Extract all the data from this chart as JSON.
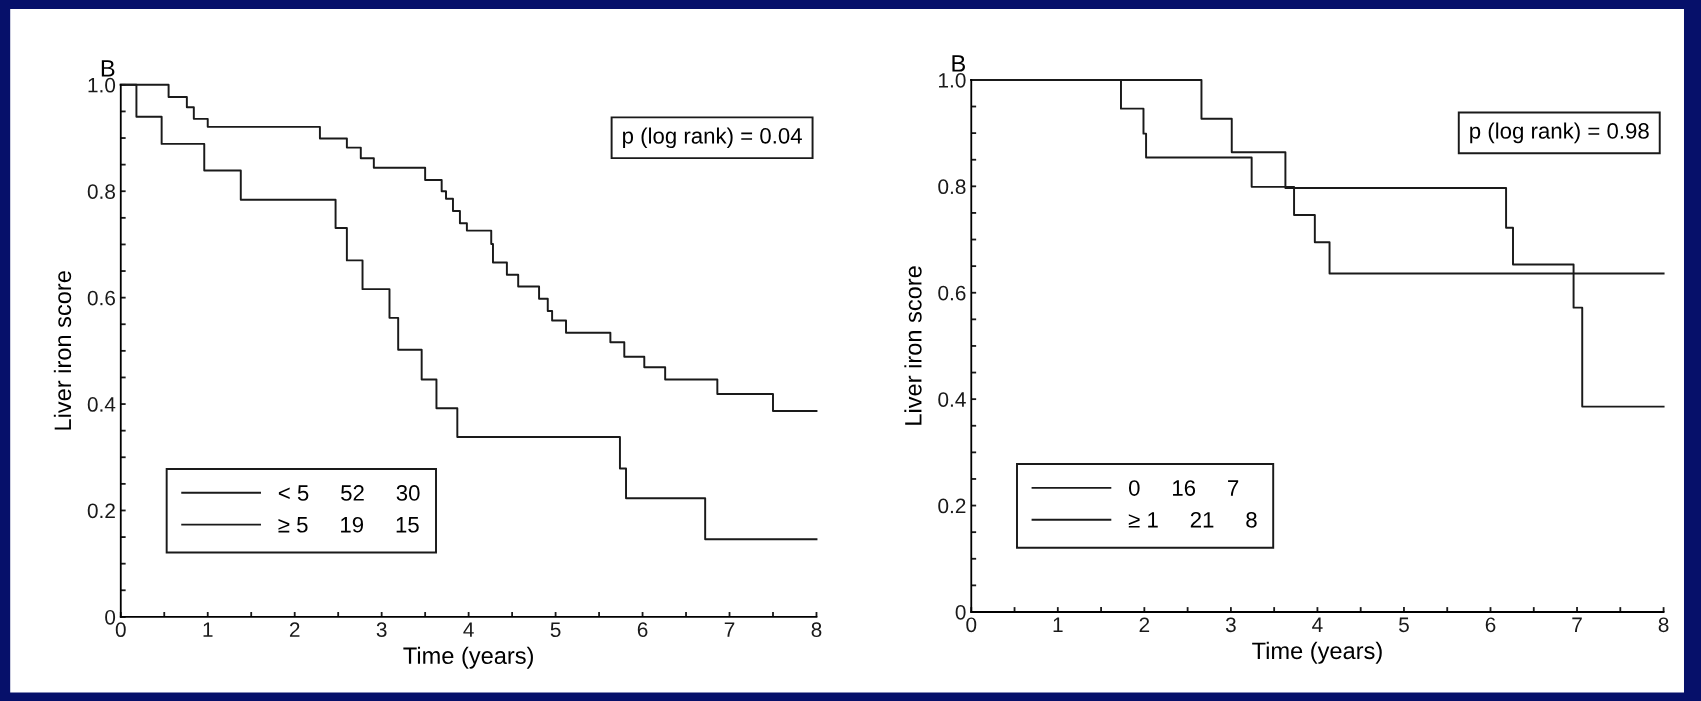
{
  "chart_data": [
    {
      "type": "step",
      "title": "B",
      "xlabel": "Time (years)",
      "ylabel": "Liver iron score",
      "annotations": [
        "p (log rank) = 0.04"
      ],
      "legend": "bottom left",
      "grid": false,
      "marker": "none",
      "line_style": "solid",
      "xlim": [
        0,
        8
      ],
      "ylim": [
        0,
        1.0
      ],
      "xticks": [
        0,
        {
          "value": 0.5,
          "label": null
        },
        1,
        {
          "value": 1.5,
          "label": null
        },
        2,
        {
          "value": 2.5,
          "label": null
        },
        3,
        {
          "value": 3.5,
          "label": null
        },
        4,
        {
          "value": 4.5,
          "label": null
        },
        5,
        {
          "value": 5.5,
          "label": null
        },
        6,
        {
          "value": 6.5,
          "label": null
        },
        7,
        {
          "value": 7.5,
          "label": null
        },
        8
      ],
      "yticks": [
        0,
        {
          "value": 0.05,
          "label": null
        },
        {
          "value": 0.1,
          "label": null
        },
        {
          "value": 0.15,
          "label": null
        },
        0.2,
        {
          "value": 0.25,
          "label": null
        },
        {
          "value": 0.3,
          "label": null
        },
        {
          "value": 0.35,
          "label": null
        },
        0.4,
        {
          "value": 0.45,
          "label": null
        },
        {
          "value": 0.5,
          "label": null
        },
        {
          "value": 0.55,
          "label": null
        },
        0.6,
        {
          "value": 0.65,
          "label": null
        },
        {
          "value": 0.7,
          "label": null
        },
        {
          "value": 0.75,
          "label": null
        },
        0.8,
        {
          "value": 0.85,
          "label": null
        },
        {
          "value": 0.9,
          "label": null
        },
        {
          "value": 0.95,
          "label": null
        },
        {
          "value": 1.0,
          "label": "1.0"
        }
      ],
      "series": [
        {
          "name": "< 5     52     30",
          "color": "#1a1a1a",
          "x": [
            0,
            0.55,
            0.76,
            0.84,
            1.0,
            2.29,
            2.6,
            2.76,
            2.91,
            3.5,
            3.69,
            3.74,
            3.82,
            3.9,
            3.98,
            4.26,
            4.28,
            4.44,
            4.57,
            4.81,
            4.91,
            4.96,
            5.12,
            5.63,
            5.79,
            6.02,
            6.26,
            6.86,
            7.5,
            8
          ],
          "values": [
            1.0,
            0.977,
            0.958,
            0.936,
            0.921,
            0.899,
            0.882,
            0.862,
            0.844,
            0.821,
            0.8,
            0.786,
            0.763,
            0.74,
            0.726,
            0.701,
            0.666,
            0.643,
            0.621,
            0.598,
            0.575,
            0.557,
            0.534,
            0.516,
            0.489,
            0.469,
            0.446,
            0.419,
            0.387,
            0.387
          ]
        },
        {
          "name": "≥ 5     19     15",
          "color": "#1a1a1a",
          "x": [
            0,
            0.18,
            0.47,
            0.96,
            1.38,
            2.47,
            2.6,
            2.78,
            3.09,
            3.19,
            3.46,
            3.63,
            3.87,
            5.74,
            5.81,
            6.72,
            8
          ],
          "values": [
            1.0,
            0.94,
            0.889,
            0.839,
            0.784,
            0.731,
            0.67,
            0.616,
            0.562,
            0.502,
            0.446,
            0.392,
            0.338,
            0.279,
            0.223,
            0.146,
            0.146
          ]
        }
      ]
    },
    {
      "type": "step",
      "title": "B",
      "xlabel": "Time (years)",
      "ylabel": "Liver iron score",
      "annotations": [
        "p (log rank) = 0.98"
      ],
      "legend": "bottom left",
      "grid": false,
      "marker": "none",
      "line_style": "solid",
      "xlim": [
        0,
        8
      ],
      "ylim": [
        0,
        1.0
      ],
      "xticks": [
        0,
        {
          "value": 0.5,
          "label": null
        },
        1,
        {
          "value": 1.5,
          "label": null
        },
        2,
        {
          "value": 2.5,
          "label": null
        },
        3,
        {
          "value": 3.5,
          "label": null
        },
        4,
        {
          "value": 4.5,
          "label": null
        },
        5,
        {
          "value": 5.5,
          "label": null
        },
        6,
        {
          "value": 6.5,
          "label": null
        },
        7,
        {
          "value": 7.5,
          "label": null
        },
        8
      ],
      "yticks": [
        0,
        {
          "value": 0.05,
          "label": null
        },
        {
          "value": 0.1,
          "label": null
        },
        {
          "value": 0.15,
          "label": null
        },
        0.2,
        {
          "value": 0.25,
          "label": null
        },
        {
          "value": 0.3,
          "label": null
        },
        {
          "value": 0.35,
          "label": null
        },
        0.4,
        {
          "value": 0.45,
          "label": null
        },
        {
          "value": 0.5,
          "label": null
        },
        {
          "value": 0.55,
          "label": null
        },
        0.6,
        {
          "value": 0.65,
          "label": null
        },
        {
          "value": 0.7,
          "label": null
        },
        {
          "value": 0.75,
          "label": null
        },
        0.8,
        {
          "value": 0.85,
          "label": null
        },
        {
          "value": 0.9,
          "label": null
        },
        {
          "value": 0.95,
          "label": null
        },
        {
          "value": 1.0,
          "label": "1.0"
        }
      ],
      "series": [
        {
          "name": "0     16     7",
          "color": "#1a1a1a",
          "x": [
            0,
            2.66,
            3.01,
            3.63,
            6.18,
            6.26,
            6.96,
            7.06,
            8
          ],
          "values": [
            1.0,
            0.927,
            0.864,
            0.797,
            0.722,
            0.653,
            0.572,
            0.386,
            0.386
          ]
        },
        {
          "name": "≥ 1     21     8",
          "color": "#1a1a1a",
          "x": [
            0,
            1.73,
            1.99,
            2.02,
            3.24,
            3.73,
            3.97,
            4.14,
            8
          ],
          "values": [
            1.0,
            0.946,
            0.899,
            0.854,
            0.799,
            0.746,
            0.695,
            0.636,
            0.636
          ]
        }
      ]
    }
  ]
}
